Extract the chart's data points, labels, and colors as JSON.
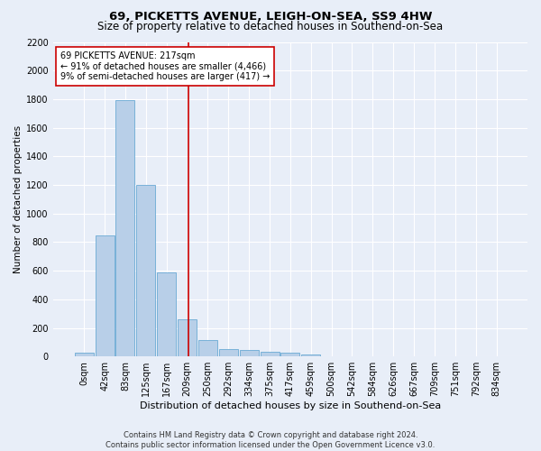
{
  "title_line1": "69, PICKETTS AVENUE, LEIGH-ON-SEA, SS9 4HW",
  "title_line2": "Size of property relative to detached houses in Southend-on-Sea",
  "xlabel": "Distribution of detached houses by size in Southend-on-Sea",
  "ylabel": "Number of detached properties",
  "footnote1": "Contains HM Land Registry data © Crown copyright and database right 2024.",
  "footnote2": "Contains public sector information licensed under the Open Government Licence v3.0.",
  "bar_labels": [
    "0sqm",
    "42sqm",
    "83sqm",
    "125sqm",
    "167sqm",
    "209sqm",
    "250sqm",
    "292sqm",
    "334sqm",
    "375sqm",
    "417sqm",
    "459sqm",
    "500sqm",
    "542sqm",
    "584sqm",
    "626sqm",
    "667sqm",
    "709sqm",
    "751sqm",
    "792sqm",
    "834sqm"
  ],
  "bar_values": [
    25,
    845,
    1795,
    1200,
    585,
    260,
    115,
    50,
    48,
    35,
    28,
    15,
    0,
    0,
    0,
    0,
    0,
    0,
    0,
    0,
    0
  ],
  "bar_color": "#b8cfe8",
  "bar_edge_color": "#6aaad4",
  "ylim": [
    0,
    2200
  ],
  "yticks": [
    0,
    200,
    400,
    600,
    800,
    1000,
    1200,
    1400,
    1600,
    1800,
    2000,
    2200
  ],
  "vline_x": 5.08,
  "vline_color": "#cc0000",
  "annotation_text": "69 PICKETTS AVENUE: 217sqm\n← 91% of detached houses are smaller (4,466)\n9% of semi-detached houses are larger (417) →",
  "annotation_box_color": "#ffffff",
  "annotation_box_edge": "#cc0000",
  "background_color": "#e8eef8",
  "grid_color": "#ffffff",
  "title_fontsize": 9.5,
  "subtitle_fontsize": 8.5,
  "axis_label_fontsize": 8,
  "tick_fontsize": 7,
  "ylabel_fontsize": 7.5,
  "footnote_fontsize": 6,
  "annotation_fontsize": 7
}
